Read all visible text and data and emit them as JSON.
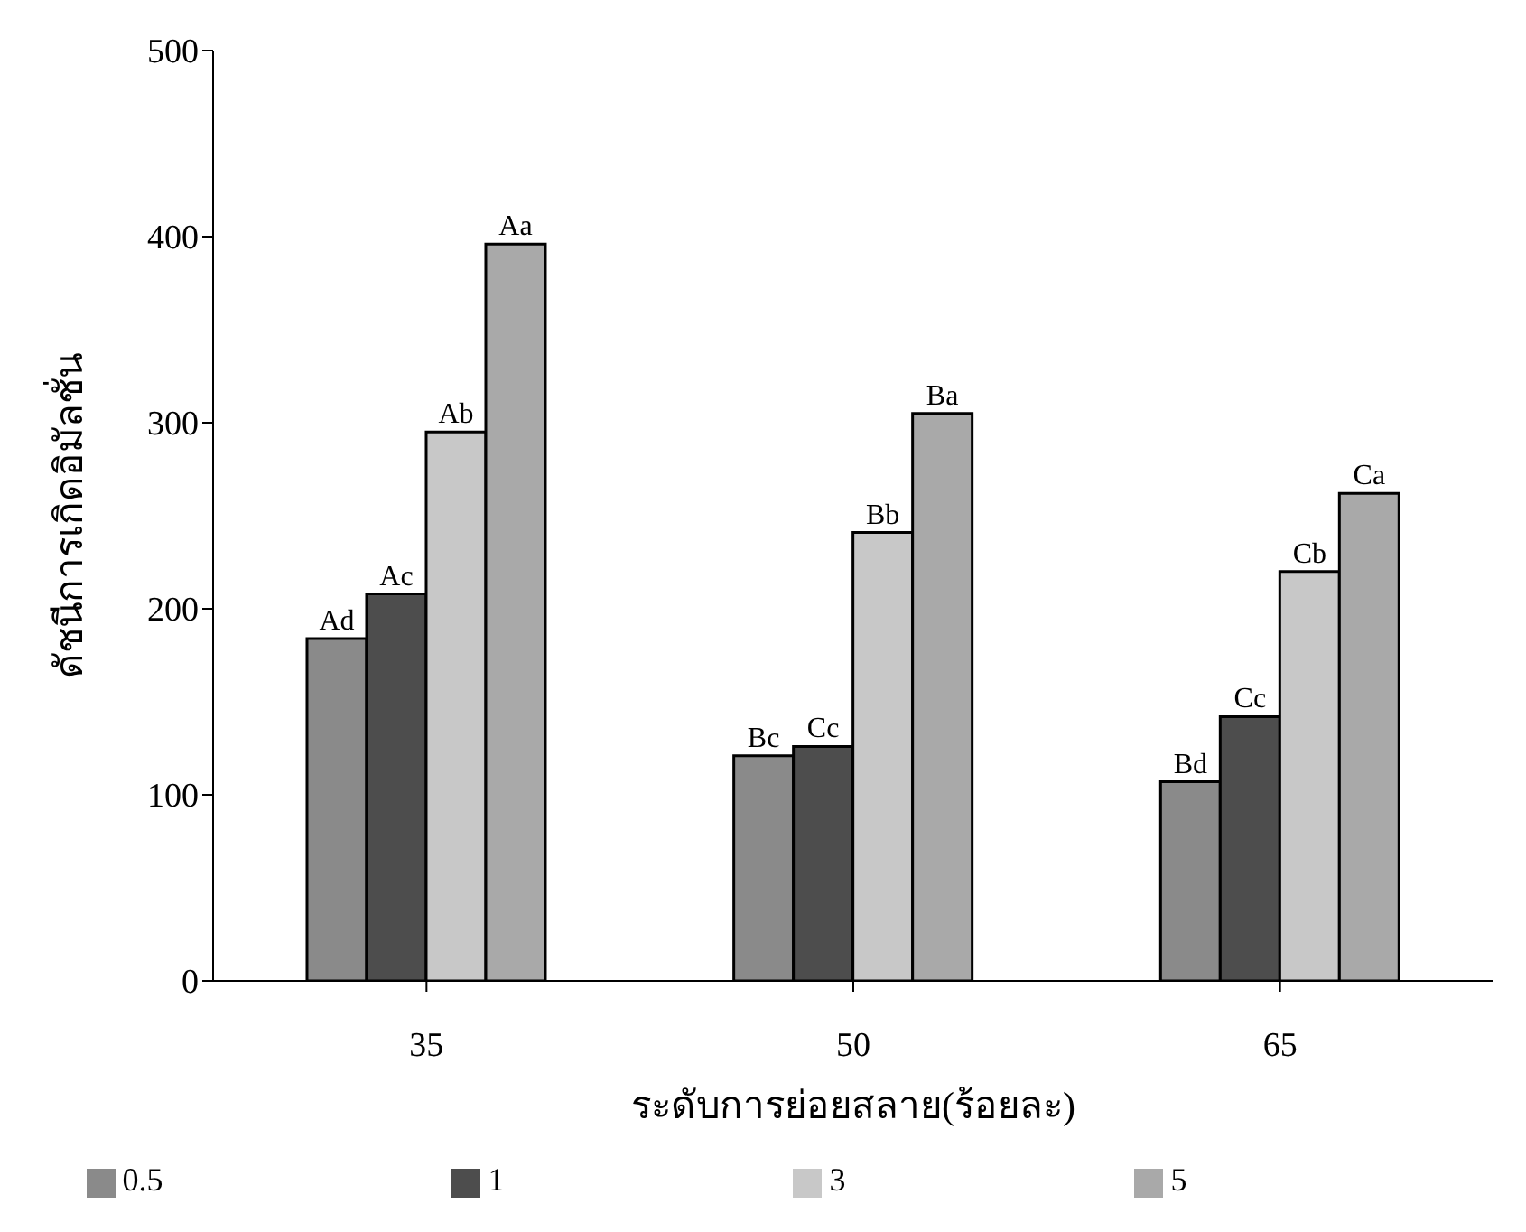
{
  "chart_data": {
    "type": "bar",
    "xlabel": "ระดับการย่อยสลาย(ร้อยละ)",
    "ylabel": "ดัชนีการเกิดอิมัลชั่น",
    "categories": [
      "35",
      "50",
      "65"
    ],
    "series": [
      {
        "name": "0.5",
        "color": "#8a8a8a",
        "values": [
          184,
          121,
          107
        ],
        "value_labels": [
          "Ad",
          "Bc",
          "Bd"
        ]
      },
      {
        "name": "1",
        "color": "#4d4d4d",
        "values": [
          208,
          126,
          142
        ],
        "value_labels": [
          "Ac",
          "Cc",
          "Cc"
        ]
      },
      {
        "name": "3",
        "color": "#c8c8c8",
        "values": [
          295,
          241,
          220
        ],
        "value_labels": [
          "Ab",
          "Bb",
          "Cb"
        ]
      },
      {
        "name": "5",
        "color": "#a9a9a9",
        "values": [
          396,
          305,
          262
        ],
        "value_labels": [
          "Aa",
          "Ba",
          "Ca"
        ]
      }
    ],
    "ylim": [
      0,
      500
    ],
    "yticks": [
      0,
      100,
      200,
      300,
      400,
      500
    ],
    "grid": false,
    "legend": "bottom"
  }
}
